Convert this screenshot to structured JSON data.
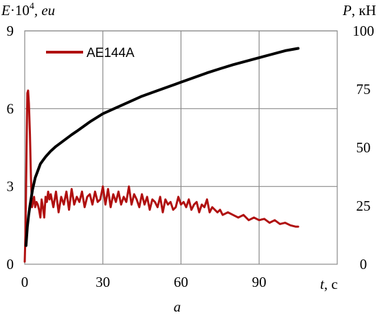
{
  "chart_data": {
    "type": "line",
    "panel_label": "а",
    "y_left_label": {
      "var": "E",
      "mid": "·10",
      "sup": "4",
      "unit": ", eu"
    },
    "y_right_label": {
      "var": "P",
      "unit": ", кН"
    },
    "x_label": {
      "var": "t",
      "unit": ", с"
    },
    "xlim": [
      0,
      120
    ],
    "ylim_left": [
      0,
      9
    ],
    "ylim_right": [
      0,
      100
    ],
    "x_ticks": [
      "0",
      "30",
      "60",
      "90"
    ],
    "y_left_ticks": [
      "0",
      "3",
      "6",
      "9"
    ],
    "y_right_ticks": [
      "0",
      "25",
      "50",
      "75",
      "100"
    ],
    "grid": true,
    "legend": {
      "placement": "top-left",
      "entries": [
        "AE144A"
      ]
    },
    "colors": {
      "ae": "#b01010",
      "load": "#000000",
      "grid": "#8a8a8a"
    },
    "series": [
      {
        "name": "AE144A",
        "axis": "left",
        "x": [
          0,
          0.3,
          0.7,
          1.0,
          1.3,
          1.6,
          2.0,
          2.4,
          2.8,
          3.2,
          3.6,
          4.0,
          4.5,
          5.0,
          5.5,
          6.0,
          6.5,
          7.0,
          7.5,
          8.0,
          8.5,
          9.0,
          9.5,
          10,
          11,
          12,
          13,
          14,
          15,
          16,
          17,
          18,
          19,
          20,
          21,
          22,
          23,
          24,
          25,
          26,
          27,
          28,
          29,
          30,
          31,
          32,
          33,
          34,
          35,
          36,
          37,
          38,
          39,
          40,
          41,
          42,
          43,
          44,
          45,
          46,
          47,
          48,
          49,
          50,
          51,
          52,
          53,
          54,
          55,
          56,
          57,
          58,
          59,
          60,
          61,
          62,
          63,
          64,
          65,
          66,
          67,
          68,
          69,
          70,
          71,
          72,
          73,
          74,
          75,
          76,
          78,
          80,
          82,
          84,
          86,
          88,
          90,
          92,
          94,
          96,
          98,
          100,
          102,
          104,
          105
        ],
        "values": [
          0.1,
          1.2,
          4.5,
          6.6,
          6.7,
          6.2,
          5.0,
          3.3,
          2.2,
          2.4,
          2.6,
          2.2,
          2.4,
          2.3,
          2.1,
          1.8,
          2.5,
          2.2,
          1.8,
          2.6,
          2.4,
          2.8,
          2.5,
          2.7,
          2.2,
          2.8,
          2.0,
          2.6,
          2.3,
          2.8,
          2.1,
          2.9,
          2.3,
          2.6,
          2.4,
          2.8,
          2.2,
          2.6,
          2.7,
          2.3,
          2.8,
          2.4,
          2.5,
          3.0,
          2.3,
          2.9,
          2.2,
          2.7,
          2.4,
          2.8,
          2.3,
          2.6,
          2.4,
          3.0,
          2.3,
          2.7,
          2.5,
          2.2,
          2.7,
          2.3,
          2.6,
          2.1,
          2.5,
          2.4,
          2.2,
          2.6,
          2.0,
          2.5,
          2.3,
          2.4,
          2.1,
          2.2,
          2.6,
          2.3,
          2.4,
          2.2,
          2.5,
          2.1,
          2.3,
          2.4,
          2.0,
          2.3,
          2.2,
          2.5,
          2.0,
          2.2,
          2.1,
          2.0,
          2.1,
          1.9,
          2.0,
          1.9,
          1.8,
          1.9,
          1.7,
          1.8,
          1.7,
          1.75,
          1.6,
          1.7,
          1.55,
          1.6,
          1.5,
          1.45,
          1.45
        ]
      },
      {
        "name": "",
        "axis": "right",
        "x": [
          0.5,
          1,
          1.5,
          2,
          3,
          4,
          5,
          6,
          7,
          8,
          10,
          12,
          15,
          18,
          20,
          25,
          30,
          35,
          40,
          45,
          50,
          55,
          60,
          65,
          70,
          75,
          80,
          85,
          90,
          95,
          100,
          105
        ],
        "values": [
          8,
          16,
          21,
          25,
          32,
          37,
          40,
          43,
          44.5,
          46,
          48.5,
          50.5,
          53,
          55.5,
          57,
          61,
          64.5,
          67,
          69.5,
          72,
          74,
          76,
          78,
          80,
          82,
          83.8,
          85.5,
          87,
          88.5,
          90,
          91.5,
          92.5
        ]
      }
    ]
  }
}
